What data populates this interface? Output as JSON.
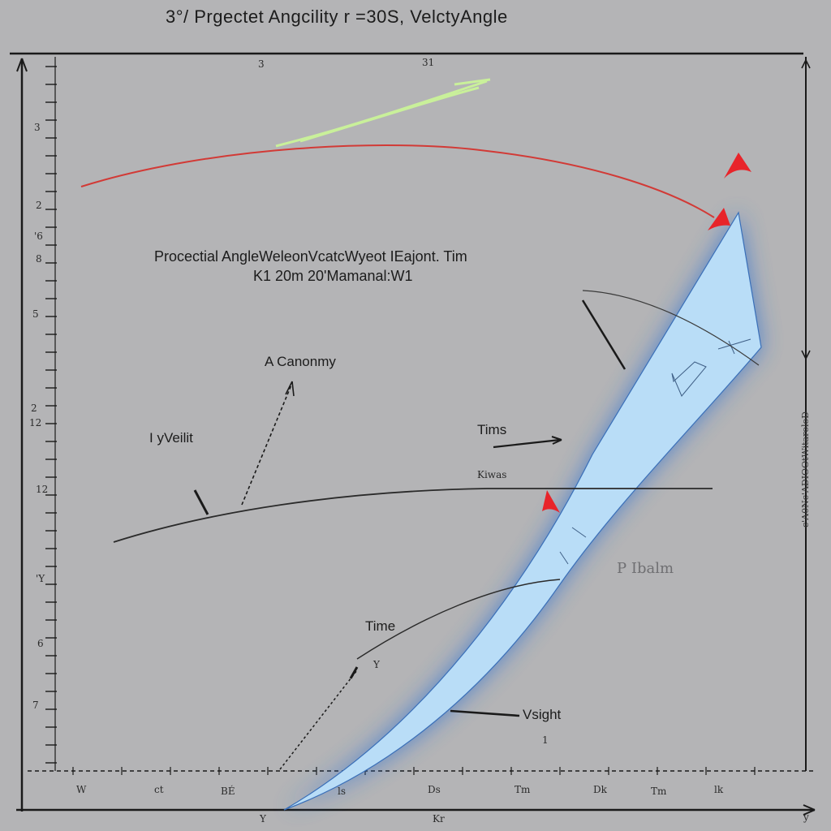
{
  "title": "3°/ Prgectet  Angcility  r =30S, VelctyAngle",
  "caption": {
    "line1": "Procectial AngleWeleonVcatcWyeot IEajont. Tim",
    "line2": "K1 20m  20'Mamanal:W1"
  },
  "annotations": {
    "canonomy": "A  Canonmy",
    "height_left": "I yVeilit",
    "tims": "Tims",
    "tims_sub": "Kiwas",
    "time": "Time",
    "height_bottom": "Vsight",
    "faint_right": "P Ibalm"
  },
  "top_ticks": [
    "3",
    "31"
  ],
  "x_ticks": [
    "W",
    "ct",
    "BÉ",
    "ls",
    "Ds",
    "Tm",
    "Dk",
    "Tm",
    "lk"
  ],
  "y_ticks": [
    "3",
    "2",
    "'6",
    "8",
    "5",
    "2",
    "12",
    "12",
    "'Y",
    "6",
    "7",
    "Y",
    "1"
  ],
  "right_axis_text": "c'A0Nc'ADIOOtWitaroloD",
  "axis_bottom_labels": {
    "origin": "Y",
    "mid": "Kr",
    "end": "y"
  },
  "colors": {
    "background": "#b4b4b6",
    "axis": "#1a1a1a",
    "trajectory_red": "#d23a36",
    "arrow_red": "#e8242a",
    "green_stroke": "#c9f09a",
    "wedge_fill": "#b9ddf7",
    "wedge_glow": "#2f73d6"
  }
}
